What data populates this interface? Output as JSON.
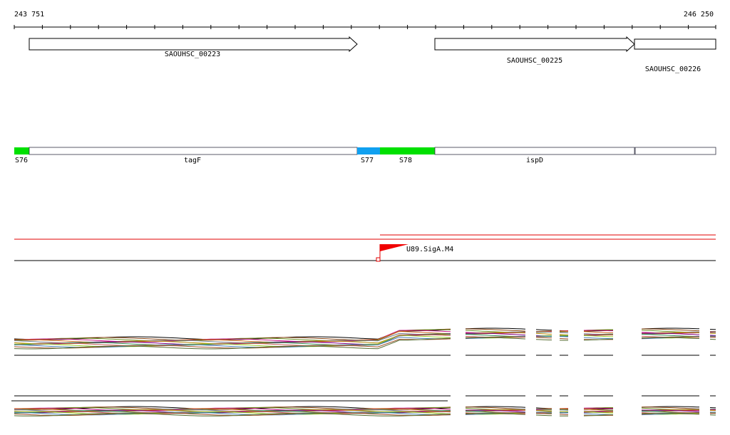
{
  "ruler": {
    "start_label": "243 751",
    "end_label": "246 250"
  },
  "genes": [
    {
      "label": "SAOUHSC_00223"
    },
    {
      "label": "SAOUHSC_00225"
    },
    {
      "label": "SAOUHSC_00226"
    }
  ],
  "segments": [
    {
      "label": "S76"
    },
    {
      "label": "tagF"
    },
    {
      "label": "S77"
    },
    {
      "label": "S78"
    },
    {
      "label": "ispD"
    }
  ],
  "promoter": {
    "label": "U89.SigA.M4"
  }
}
